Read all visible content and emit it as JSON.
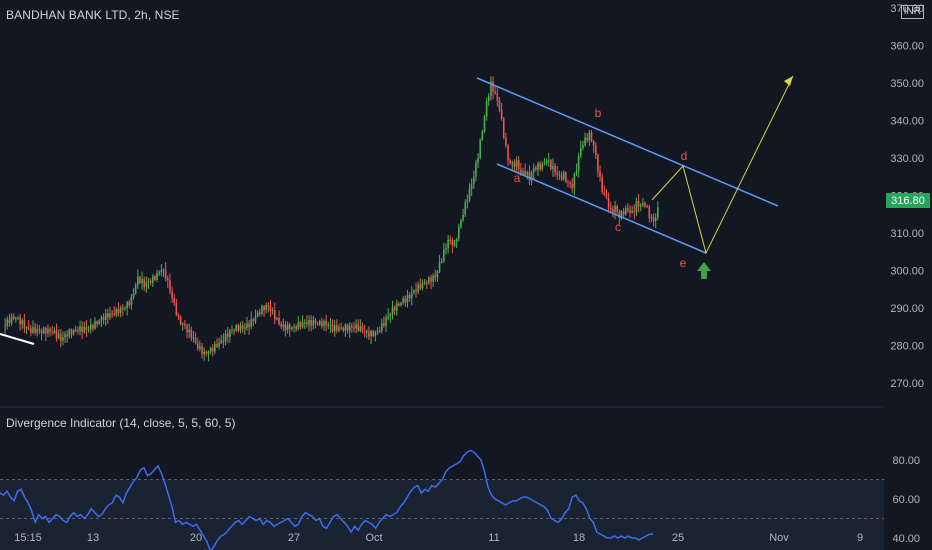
{
  "header": {
    "symbol_line": "BANDHAN BANK LTD, 2h, NSE",
    "currency": "INR"
  },
  "indicator": {
    "title": "Divergence Indicator (14, close, 5, 5, 60, 5)",
    "y_ticks": [
      "80.00",
      "60.00",
      "40.00"
    ]
  },
  "colors": {
    "background": "#131722",
    "up": "#4caf50",
    "down": "#ef5350",
    "channel": "#5b9cf6",
    "projection": "#d4d34a",
    "wave_label": "#ef5350",
    "indicator_line": "#3d6cf0",
    "price_badge": "#26a65b",
    "arrow": "#43a047"
  },
  "chart_data": [
    {
      "type": "candlestick",
      "title": "BANDHAN BANK LTD, 2h, NSE",
      "ylim": [
        262,
        371
      ],
      "y_ticks": [
        270,
        280,
        290,
        300,
        310,
        320,
        330,
        340,
        350,
        360,
        370
      ],
      "y_tick_labels": [
        "270.00",
        "280.00",
        "290.00",
        "300.00",
        "310.00",
        "320.00",
        "330.00",
        "340.00",
        "350.00",
        "360.00",
        "370.00"
      ],
      "x_tick_labels": [
        "15:15",
        "13",
        "20",
        "27",
        "Oct",
        "11",
        "18",
        "25",
        "Nov",
        "9"
      ],
      "last_price": "316.80",
      "close_path": [
        [
          0,
          285
        ],
        [
          3,
          286
        ],
        [
          6,
          287
        ],
        [
          9,
          286.5
        ],
        [
          12,
          285
        ],
        [
          15,
          284
        ],
        [
          18,
          283
        ],
        [
          21,
          283.5
        ],
        [
          24,
          284
        ],
        [
          27,
          282.5
        ],
        [
          30,
          283
        ],
        [
          33,
          283
        ],
        [
          36,
          284
        ],
        [
          39,
          285
        ],
        [
          42,
          286
        ],
        [
          45,
          286.5
        ],
        [
          48,
          287
        ],
        [
          51,
          288
        ],
        [
          54,
          290
        ],
        [
          57,
          291
        ],
        [
          60,
          292
        ],
        [
          63,
          297
        ],
        [
          66,
          296
        ],
        [
          69,
          298
        ],
        [
          72,
          299.5
        ],
        [
          74,
          300.5
        ],
        [
          76,
          298
        ],
        [
          79,
          292
        ],
        [
          82,
          287
        ],
        [
          85,
          286
        ],
        [
          88,
          283
        ],
        [
          91,
          279
        ],
        [
          94,
          277
        ],
        [
          97,
          279
        ],
        [
          100,
          281
        ],
        [
          103,
          282
        ],
        [
          106,
          283
        ],
        [
          109,
          284
        ],
        [
          112,
          285
        ],
        [
          115,
          286.5
        ],
        [
          118,
          288
        ],
        [
          121,
          289
        ],
        [
          124,
          290
        ],
        [
          127,
          288
        ],
        [
          130,
          286
        ],
        [
          133,
          285
        ],
        [
          136,
          284
        ],
        [
          139,
          285
        ],
        [
          142,
          286.5
        ],
        [
          145,
          287
        ],
        [
          148,
          286
        ],
        [
          151,
          285
        ],
        [
          154,
          284
        ],
        [
          157,
          285
        ],
        [
          160,
          285.5
        ],
        [
          163,
          285
        ],
        [
          166,
          284
        ],
        [
          169,
          283
        ],
        [
          172,
          283.5
        ],
        [
          175,
          284.5
        ],
        [
          178,
          286
        ],
        [
          181,
          288
        ],
        [
          184,
          290
        ],
        [
          187,
          292.5
        ],
        [
          190,
          294
        ],
        [
          193,
          295
        ],
        [
          196,
          295.5
        ],
        [
          199,
          297
        ],
        [
          202,
          299
        ],
        [
          205,
          304
        ],
        [
          208,
          308
        ],
        [
          211,
          306
        ],
        [
          214,
          313
        ],
        [
          217,
          320
        ],
        [
          220,
          326
        ],
        [
          222,
          331
        ],
        [
          224,
          337
        ],
        [
          226,
          344
        ],
        [
          228,
          349
        ],
        [
          230,
          347
        ],
        [
          232,
          344
        ],
        [
          234,
          337
        ],
        [
          236,
          330
        ],
        [
          238,
          328
        ],
        [
          240,
          328
        ],
        [
          242,
          325
        ],
        [
          244,
          326
        ],
        [
          246,
          325
        ],
        [
          248,
          328
        ],
        [
          250,
          328.5
        ],
        [
          252,
          328
        ],
        [
          254,
          329
        ],
        [
          256,
          327
        ],
        [
          258,
          326
        ],
        [
          260,
          325
        ],
        [
          262,
          326
        ],
        [
          264,
          324
        ],
        [
          266,
          323
        ],
        [
          268,
          327
        ],
        [
          270,
          332
        ],
        [
          272,
          334
        ],
        [
          274,
          336
        ],
        [
          276,
          334
        ],
        [
          278,
          328
        ],
        [
          280,
          322
        ],
        [
          282,
          319
        ],
        [
          284,
          315
        ],
        [
          286,
          316
        ],
        [
          288,
          314
        ],
        [
          290,
          316
        ],
        [
          292,
          317
        ],
        [
          294,
          316
        ],
        [
          296,
          318
        ],
        [
          298,
          317
        ],
        [
          300,
          317
        ],
        [
          302,
          314
        ],
        [
          304,
          313
        ],
        [
          306,
          316.8
        ]
      ]
    },
    {
      "type": "line",
      "title": "Divergence Indicator (14, close, 5, 5, 60, 5)",
      "ylim": [
        28,
        86
      ],
      "y_ticks": [
        80,
        60,
        40
      ],
      "bands": [
        70,
        50,
        30
      ],
      "values": [
        63,
        62,
        64,
        61,
        59,
        64,
        65,
        61,
        58,
        54,
        48,
        52,
        50,
        51,
        48,
        50,
        52,
        51,
        49,
        48,
        51,
        53,
        51,
        52,
        50,
        52,
        55,
        53,
        51,
        52,
        55,
        57,
        58,
        62,
        61,
        58,
        63,
        66,
        69,
        71,
        75,
        76,
        72,
        73,
        75,
        77,
        73,
        68,
        62,
        56,
        48,
        49,
        47,
        48,
        47,
        46,
        47,
        44,
        41,
        38,
        33,
        36,
        39,
        41,
        42,
        44,
        46,
        48,
        49,
        47,
        49,
        51,
        50,
        49,
        50,
        47,
        49,
        48,
        46,
        47,
        48,
        49,
        50,
        48,
        46,
        47,
        51,
        53,
        52,
        51,
        49,
        50,
        46,
        45,
        48,
        51,
        52,
        50,
        48,
        46,
        43,
        46,
        44,
        47,
        49,
        48,
        47,
        45,
        48,
        50,
        52,
        51,
        52,
        53,
        56,
        58,
        61,
        64,
        66,
        67,
        63,
        65,
        64,
        67,
        66,
        68,
        70,
        74,
        76,
        77,
        78,
        79,
        82,
        84,
        85,
        84,
        82,
        80,
        74,
        66,
        62,
        60,
        59,
        58,
        57,
        58,
        59,
        59,
        60,
        61,
        61,
        60,
        59,
        58,
        57,
        56,
        54,
        50,
        49,
        48,
        50,
        53,
        55,
        61,
        62,
        59,
        58,
        55,
        50,
        48,
        43,
        42,
        41,
        40,
        40,
        41,
        40,
        41,
        40,
        41,
        40,
        40,
        39,
        40,
        41,
        42,
        42
      ]
    }
  ],
  "annotations": {
    "wave_labels": [
      "a",
      "b",
      "c",
      "d",
      "e"
    ]
  }
}
